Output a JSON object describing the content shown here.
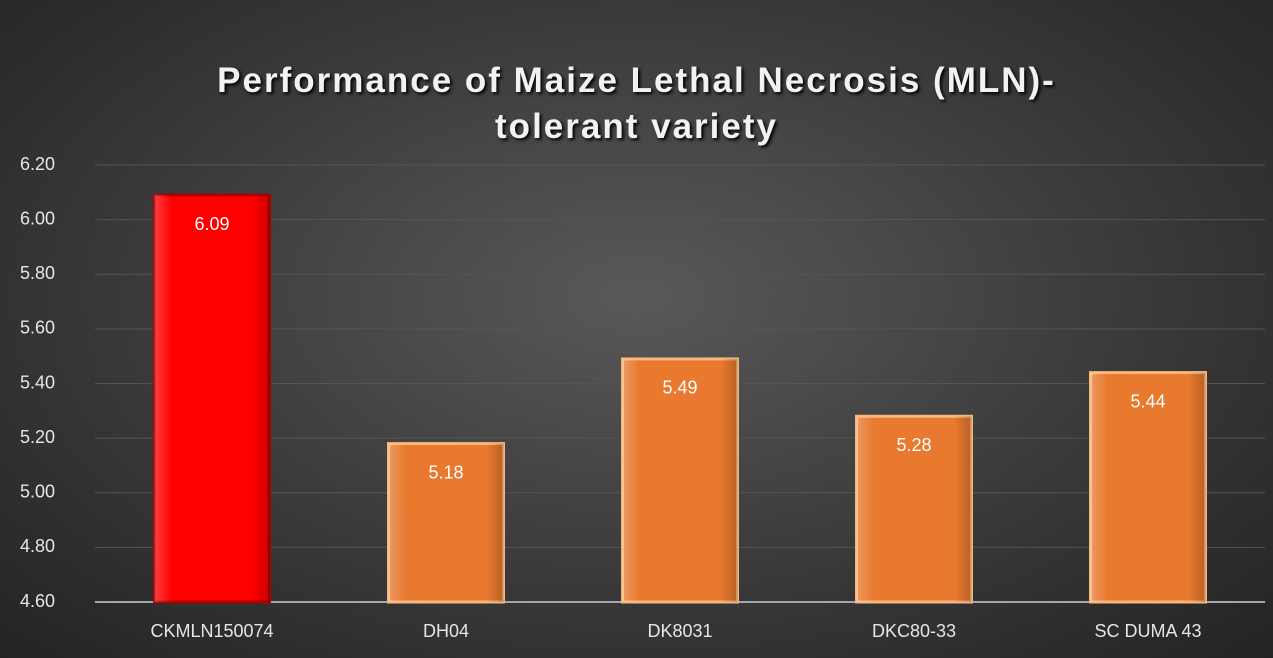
{
  "chart_data": {
    "type": "bar",
    "title": "Performance of Maize Lethal Necrosis (MLN)-tolerant variety",
    "categories": [
      "CKMLN150074",
      "DH04",
      "DK8031",
      "DKC80-33",
      "SC DUMA 43"
    ],
    "values": [
      6.09,
      5.18,
      5.49,
      5.28,
      5.44
    ],
    "colors": [
      "#ff0000",
      "#e8792f",
      "#e8792f",
      "#e8792f",
      "#e8792f"
    ],
    "ylim": [
      4.6,
      6.2
    ],
    "yticks": [
      {
        "value": 4.6,
        "label": "4.60"
      },
      {
        "value": 4.8,
        "label": "4.80"
      },
      {
        "value": 5.0,
        "label": "5.00"
      },
      {
        "value": 5.2,
        "label": "5.20"
      },
      {
        "value": 5.4,
        "label": "5.40"
      },
      {
        "value": 5.6,
        "label": "5.60"
      },
      {
        "value": 5.8,
        "label": "5.80"
      },
      {
        "value": 6.0,
        "label": "6.00"
      },
      {
        "value": 6.2,
        "label": "6.20"
      }
    ],
    "grid": true
  }
}
